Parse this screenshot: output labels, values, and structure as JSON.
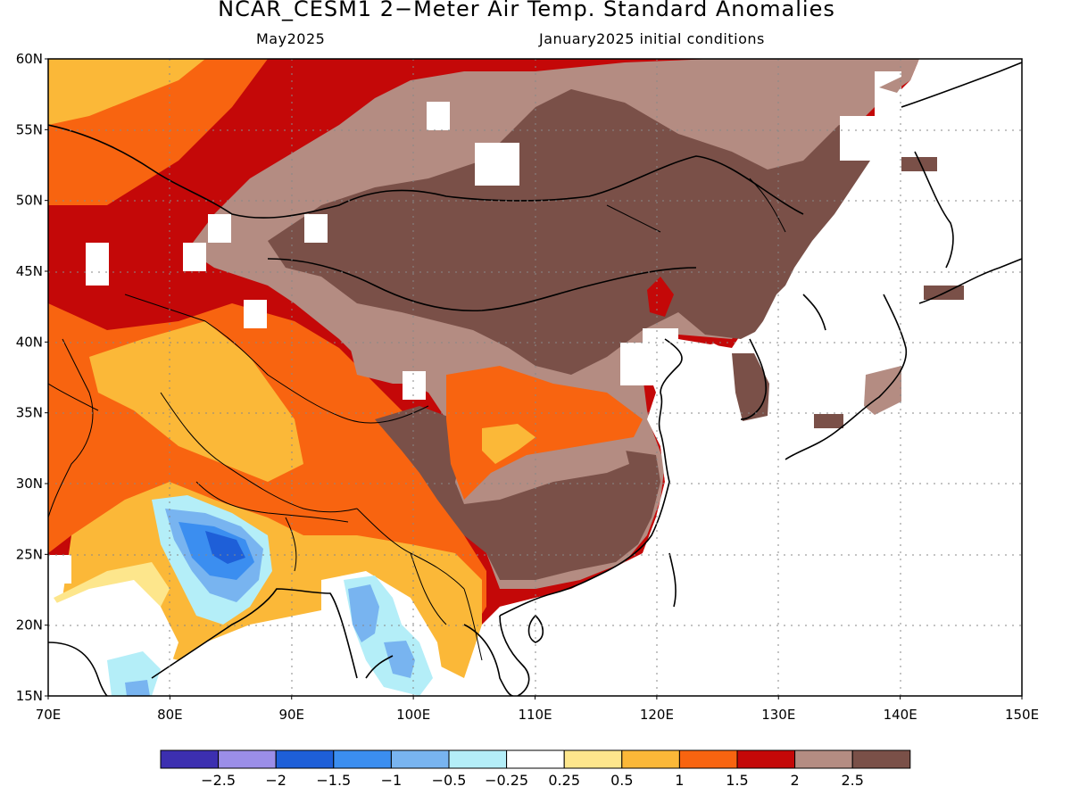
{
  "title": "NCAR_CESM1 2−Meter Air Temp. Standard Anomalies",
  "subtitle_left": "May2025",
  "subtitle_right": "January2025 initial conditions",
  "lat_ticks": [
    "60N",
    "55N",
    "50N",
    "45N",
    "40N",
    "35N",
    "30N",
    "25N",
    "20N",
    "15N"
  ],
  "lon_ticks": [
    "70E",
    "80E",
    "90E",
    "100E",
    "110E",
    "120E",
    "130E",
    "140E",
    "150E"
  ],
  "colorbar": {
    "colors": [
      "#3c2fb0",
      "#9b8ee8",
      "#1e5fd8",
      "#3b8ef0",
      "#78b4f0",
      "#b4eef8",
      "#ffffff",
      "#fde68c",
      "#fbb838",
      "#f86410",
      "#c40808",
      "#b48c82",
      "#7a5048"
    ],
    "labels": [
      "−2.5",
      "−2",
      "−1.5",
      "−1",
      "−0.5",
      "−0.25",
      "0.25",
      "0.5",
      "1",
      "1.5",
      "2",
      "2.5"
    ]
  },
  "colors": {
    "brown": "#7a5048",
    "taupe": "#b48c82",
    "red": "#c40808",
    "orange": "#f86410",
    "lightorange": "#fbb838",
    "yellow": "#fde68c",
    "white": "#ffffff",
    "cyan": "#b4eef8",
    "lightblue": "#78b4f0",
    "blue": "#3b8ef0",
    "darkblue": "#1e5fd8"
  }
}
